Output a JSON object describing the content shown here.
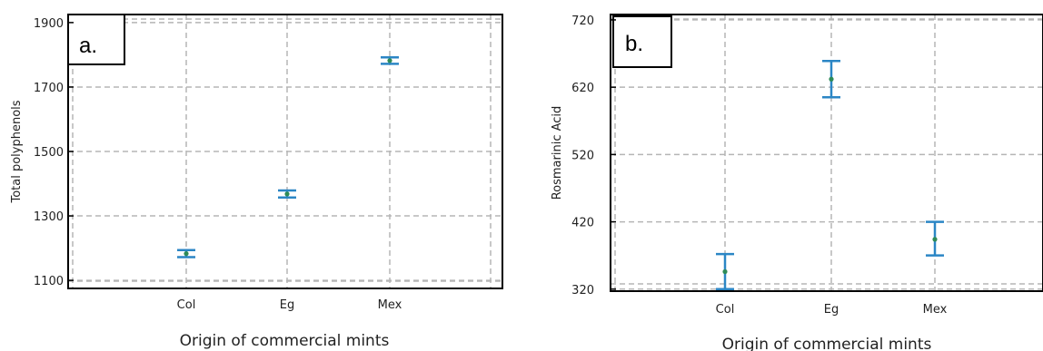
{
  "chart_data": [
    {
      "type": "scatter",
      "panel_label": "a.",
      "title": "",
      "xlabel": "Origin of commercial mints",
      "ylabel": "Total polyphenols",
      "categories": [
        "Col",
        "Eg",
        "Mex"
      ],
      "yticks": [
        "1100",
        "1300",
        "1500",
        "1700",
        "1900"
      ],
      "ylim": [
        1075,
        1925
      ],
      "grid": true,
      "series": [
        {
          "values": [
            1183,
            1368,
            1782
          ],
          "lower": [
            1172,
            1357,
            1772
          ],
          "upper": [
            1194,
            1379,
            1792
          ]
        }
      ]
    },
    {
      "type": "scatter",
      "panel_label": "b.",
      "title": "",
      "xlabel": "Origin of commercial mints",
      "ylabel": "Rosmarinic Acid",
      "categories": [
        "Col",
        "Eg",
        "Mex"
      ],
      "yticks": [
        "320",
        "420",
        "520",
        "620",
        "720"
      ],
      "ylim": [
        317,
        728
      ],
      "grid": true,
      "series": [
        {
          "values": [
            346,
            632,
            394
          ],
          "lower": [
            320,
            605,
            370
          ],
          "upper": [
            372,
            659,
            420
          ]
        }
      ]
    }
  ],
  "colors": {
    "errorbar": "#2b86c5",
    "point": "#2e8b57",
    "grid": "#b5b5b5",
    "frame": "#000000"
  }
}
